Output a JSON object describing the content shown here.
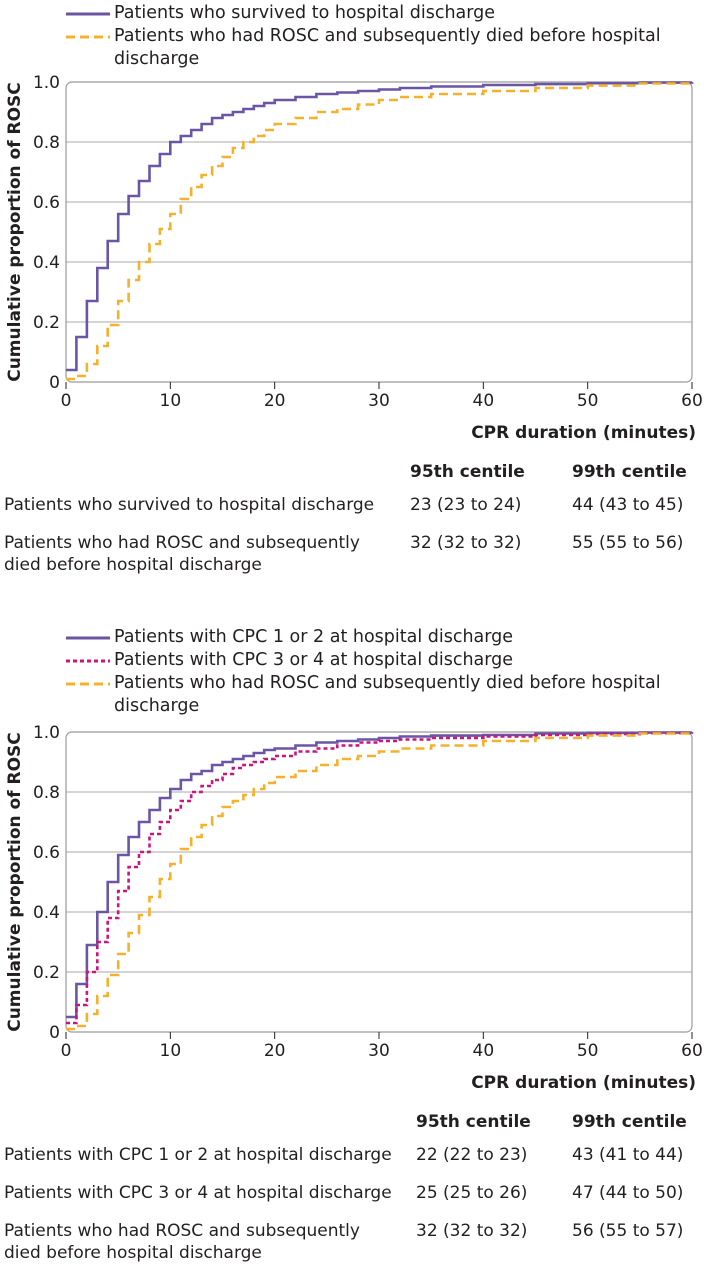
{
  "charts": [
    {
      "legend": [
        {
          "label": "Patients who survived to hospital discharge",
          "color": "#6a56a5",
          "dash": "solid"
        },
        {
          "label": "Patients who had ROSC and subsequently died before hospital discharge",
          "color": "#f5b12c",
          "dash": "dashed"
        }
      ],
      "table": {
        "headers": [
          "95th centile",
          "99th centile"
        ],
        "rows": [
          {
            "label": "Patients who survived to hospital discharge",
            "p95": "23 (23 to 24)",
            "p99": "44 (43 to 45)"
          },
          {
            "label": "Patients who had ROSC and subsequently died before hospital discharge",
            "p95": "32 (32 to 32)",
            "p99": "55 (55 to 56)"
          }
        ]
      }
    },
    {
      "legend": [
        {
          "label": "Patients with CPC 1 or 2 at hospital discharge",
          "color": "#6a56a5",
          "dash": "solid"
        },
        {
          "label": "Patients with CPC 3 or 4 at hospital discharge",
          "color": "#c8157f",
          "dash": "dotted"
        },
        {
          "label": "Patients who had ROSC and subsequently died before hospital discharge",
          "color": "#f5b12c",
          "dash": "dashed"
        }
      ],
      "table": {
        "headers": [
          "95th centile",
          "99th centile"
        ],
        "rows": [
          {
            "label": "Patients with CPC 1 or 2 at hospital discharge",
            "p95": "22 (22 to 23)",
            "p99": "43 (41 to 44)"
          },
          {
            "label": "Patients with CPC 3 or 4 at hospital discharge",
            "p95": "25 (25 to 26)",
            "p99": "47 (44 to 50)"
          },
          {
            "label": "Patients who had ROSC and subsequently died before hospital discharge",
            "p95": "32 (32 to 32)",
            "p99": "56 (55 to 57)"
          }
        ]
      }
    }
  ],
  "chart_data": [
    {
      "type": "line",
      "title": "",
      "xlabel": "CPR duration (minutes)",
      "ylabel": "Cumulative proportion of ROSC",
      "xlim": [
        0,
        60
      ],
      "ylim": [
        0,
        1.0
      ],
      "xticks": [
        0,
        10,
        20,
        30,
        40,
        50,
        60
      ],
      "yticks": [
        0,
        0.2,
        0.4,
        0.6,
        0.8,
        1.0
      ],
      "ytick_labels": [
        "0",
        "0.2",
        "0.4",
        "0.6",
        "0.8",
        "1.0"
      ],
      "grid": "horizontal",
      "series": [
        {
          "name": "Patients who survived to hospital discharge",
          "color": "#6a56a5",
          "dash": "solid",
          "x": [
            0,
            1,
            2,
            3,
            4,
            5,
            6,
            7,
            8,
            9,
            10,
            11,
            12,
            13,
            14,
            15,
            16,
            17,
            18,
            19,
            20,
            22,
            24,
            26,
            28,
            30,
            32,
            35,
            40,
            45,
            50,
            55,
            60
          ],
          "y": [
            0.04,
            0.15,
            0.27,
            0.38,
            0.47,
            0.56,
            0.62,
            0.67,
            0.72,
            0.76,
            0.8,
            0.82,
            0.84,
            0.86,
            0.88,
            0.89,
            0.9,
            0.91,
            0.92,
            0.93,
            0.94,
            0.95,
            0.96,
            0.965,
            0.97,
            0.975,
            0.98,
            0.985,
            0.99,
            0.993,
            0.996,
            0.998,
            1.0
          ]
        },
        {
          "name": "Patients who had ROSC and subsequently died before hospital discharge",
          "color": "#f5b12c",
          "dash": "dashed",
          "x": [
            0,
            1,
            2,
            3,
            4,
            5,
            6,
            7,
            8,
            9,
            10,
            11,
            12,
            13,
            14,
            15,
            16,
            17,
            18,
            19,
            20,
            22,
            24,
            26,
            28,
            30,
            32,
            35,
            40,
            45,
            50,
            55,
            60
          ],
          "y": [
            0.01,
            0.02,
            0.06,
            0.12,
            0.19,
            0.27,
            0.34,
            0.4,
            0.46,
            0.51,
            0.56,
            0.61,
            0.65,
            0.69,
            0.72,
            0.75,
            0.78,
            0.8,
            0.82,
            0.84,
            0.86,
            0.88,
            0.9,
            0.91,
            0.925,
            0.94,
            0.95,
            0.96,
            0.97,
            0.98,
            0.988,
            0.995,
            1.0
          ]
        }
      ]
    },
    {
      "type": "line",
      "title": "",
      "xlabel": "CPR duration (minutes)",
      "ylabel": "Cumulative proportion of ROSC",
      "xlim": [
        0,
        60
      ],
      "ylim": [
        0,
        1.0
      ],
      "xticks": [
        0,
        10,
        20,
        30,
        40,
        50,
        60
      ],
      "yticks": [
        0,
        0.2,
        0.4,
        0.6,
        0.8,
        1.0
      ],
      "ytick_labels": [
        "0",
        "0.2",
        "0.4",
        "0.6",
        "0.8",
        "1.0"
      ],
      "grid": "horizontal",
      "series": [
        {
          "name": "Patients with CPC 1 or 2 at hospital discharge",
          "color": "#6a56a5",
          "dash": "solid",
          "x": [
            0,
            1,
            2,
            3,
            4,
            5,
            6,
            7,
            8,
            9,
            10,
            11,
            12,
            13,
            14,
            15,
            16,
            17,
            18,
            19,
            20,
            22,
            24,
            26,
            28,
            30,
            32,
            35,
            40,
            45,
            50,
            55,
            60
          ],
          "y": [
            0.05,
            0.16,
            0.29,
            0.4,
            0.5,
            0.59,
            0.65,
            0.7,
            0.74,
            0.78,
            0.81,
            0.84,
            0.86,
            0.87,
            0.89,
            0.9,
            0.91,
            0.92,
            0.93,
            0.94,
            0.945,
            0.955,
            0.965,
            0.97,
            0.975,
            0.98,
            0.985,
            0.988,
            0.99,
            0.995,
            0.997,
            0.998,
            1.0
          ]
        },
        {
          "name": "Patients with CPC 3 or 4 at hospital discharge",
          "color": "#c8157f",
          "dash": "dotted",
          "x": [
            0,
            1,
            2,
            3,
            4,
            5,
            6,
            7,
            8,
            9,
            10,
            11,
            12,
            13,
            14,
            15,
            16,
            17,
            18,
            19,
            20,
            22,
            24,
            26,
            28,
            30,
            32,
            35,
            40,
            45,
            50,
            55,
            60
          ],
          "y": [
            0.03,
            0.09,
            0.2,
            0.3,
            0.38,
            0.47,
            0.55,
            0.6,
            0.66,
            0.7,
            0.74,
            0.77,
            0.8,
            0.82,
            0.84,
            0.86,
            0.88,
            0.89,
            0.9,
            0.91,
            0.92,
            0.935,
            0.945,
            0.955,
            0.965,
            0.97,
            0.975,
            0.98,
            0.985,
            0.99,
            0.993,
            0.996,
            1.0
          ]
        },
        {
          "name": "Patients who had ROSC and subsequently died before hospital discharge",
          "color": "#f5b12c",
          "dash": "dashed",
          "x": [
            0,
            1,
            2,
            3,
            4,
            5,
            6,
            7,
            8,
            9,
            10,
            11,
            12,
            13,
            14,
            15,
            16,
            17,
            18,
            19,
            20,
            22,
            24,
            26,
            28,
            30,
            32,
            35,
            40,
            45,
            50,
            55,
            60
          ],
          "y": [
            0.01,
            0.02,
            0.06,
            0.12,
            0.19,
            0.26,
            0.33,
            0.39,
            0.45,
            0.51,
            0.56,
            0.61,
            0.65,
            0.69,
            0.72,
            0.75,
            0.77,
            0.79,
            0.81,
            0.83,
            0.85,
            0.87,
            0.89,
            0.91,
            0.92,
            0.935,
            0.945,
            0.955,
            0.97,
            0.98,
            0.988,
            0.995,
            1.0
          ]
        }
      ]
    }
  ]
}
